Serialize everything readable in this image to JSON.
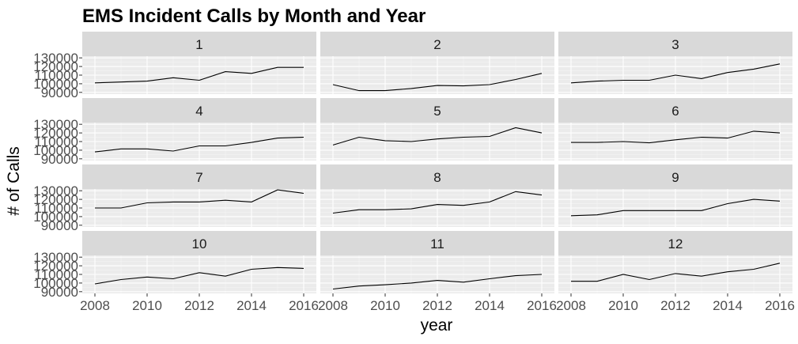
{
  "chart_data": {
    "type": "line",
    "title": "EMS Incident Calls by Month and Year",
    "xlabel": "year",
    "ylabel": "# of Calls",
    "facet_by": "month",
    "xlim": [
      2008,
      2016
    ],
    "ylim": [
      90000,
      130000
    ],
    "x_ticks": [
      2008,
      2010,
      2012,
      2014,
      2016
    ],
    "y_ticks": [
      90000,
      100000,
      110000,
      120000,
      130000
    ],
    "x": [
      2008,
      2009,
      2010,
      2011,
      2012,
      2013,
      2014,
      2015,
      2016
    ],
    "grid": true,
    "line_color": "#000000",
    "panel_background": "#ebebeb",
    "strip_background": "#d9d9d9",
    "panels": [
      {
        "label": "1",
        "values": [
          101000,
          102000,
          103000,
          107000,
          104000,
          114000,
          112000,
          119000,
          119000
        ]
      },
      {
        "label": "2",
        "values": [
          99000,
          92000,
          92000,
          94500,
          98000,
          97500,
          99000,
          105000,
          112000
        ]
      },
      {
        "label": "3",
        "values": [
          101000,
          103000,
          104000,
          104000,
          110000,
          106000,
          113000,
          117000,
          123000
        ]
      },
      {
        "label": "4",
        "values": [
          98000,
          101500,
          101500,
          99000,
          105000,
          105000,
          109000,
          114000,
          115000
        ]
      },
      {
        "label": "5",
        "values": [
          106000,
          115000,
          111000,
          110000,
          113000,
          115000,
          116000,
          126000,
          120000
        ]
      },
      {
        "label": "6",
        "values": [
          109000,
          109000,
          110000,
          108500,
          112000,
          115000,
          114000,
          122000,
          120000
        ]
      },
      {
        "label": "7",
        "values": [
          110000,
          110000,
          116000,
          117000,
          117000,
          119000,
          117000,
          131000,
          127000
        ]
      },
      {
        "label": "8",
        "values": [
          104000,
          108000,
          108000,
          109000,
          114000,
          113000,
          117000,
          129000,
          125000
        ]
      },
      {
        "label": "9",
        "values": [
          101000,
          102000,
          107000,
          107000,
          107000,
          107000,
          115000,
          120000,
          118000
        ]
      },
      {
        "label": "10",
        "values": [
          99000,
          104000,
          107000,
          105000,
          112000,
          108000,
          116000,
          118000,
          117000
        ]
      },
      {
        "label": "11",
        "values": [
          93000,
          96500,
          98000,
          100000,
          103000,
          101000,
          105000,
          108500,
          110000
        ]
      },
      {
        "label": "12",
        "values": [
          102000,
          102000,
          110000,
          104000,
          111000,
          108000,
          113000,
          116000,
          123000
        ]
      }
    ]
  }
}
